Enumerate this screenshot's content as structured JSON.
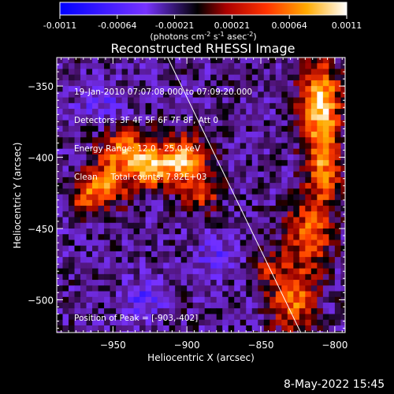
{
  "colorbar": {
    "tick_labels": [
      "-0.0011",
      "-0.00064",
      "-0.00021",
      "0.00021",
      "0.00064",
      "0.0011"
    ],
    "units_prefix": "(photons cm",
    "units_exp1": "-2",
    "units_mid": " s",
    "units_exp2": "-1",
    "units_mid2": " asec",
    "units_exp3": "-2",
    "units_suffix": ")"
  },
  "chart_data": {
    "type": "heatmap",
    "title": "Reconstructed RHESSI Image",
    "xlabel": "Heliocentric X (arcsec)",
    "ylabel": "Heliocentric Y (arcsec)",
    "xlim": [
      -988,
      -793
    ],
    "ylim": [
      -523,
      -330
    ],
    "x_ticks": [
      -950,
      -900,
      -850,
      -800
    ],
    "y_ticks": [
      -350,
      -400,
      -450,
      -500
    ],
    "x_tick_labels": [
      "−950",
      "−900",
      "−850",
      "−800"
    ],
    "y_tick_labels": [
      "−350",
      "−400",
      "−450",
      "−500"
    ],
    "color_range": [
      -0.0011,
      0.0011
    ],
    "limb_line": [
      [
        -913,
        -330
      ],
      [
        -823,
        -523
      ]
    ],
    "peak": [
      -903,
      -402
    ],
    "sources": [
      {
        "x": -940,
        "y": -396,
        "sx": 12,
        "sy": 10,
        "amp": 0.00095
      },
      {
        "x": -955,
        "y": -420,
        "sx": 10,
        "sy": 10,
        "amp": 0.0009
      },
      {
        "x": -925,
        "y": -410,
        "sx": 9,
        "sy": 9,
        "amp": 0.0008
      },
      {
        "x": -903,
        "y": -402,
        "sx": 11,
        "sy": 11,
        "amp": 0.0011
      },
      {
        "x": -890,
        "y": -425,
        "sx": 8,
        "sy": 8,
        "amp": 0.0007
      },
      {
        "x": -970,
        "y": -430,
        "sx": 6,
        "sy": 8,
        "amp": 0.0005
      },
      {
        "x": -810,
        "y": -360,
        "sx": 9,
        "sy": 18,
        "amp": 0.0011
      },
      {
        "x": -808,
        "y": -405,
        "sx": 8,
        "sy": 22,
        "amp": 0.00085
      },
      {
        "x": -818,
        "y": -455,
        "sx": 10,
        "sy": 16,
        "amp": 0.00075
      },
      {
        "x": -828,
        "y": -500,
        "sx": 10,
        "sy": 16,
        "amp": 0.0008
      },
      {
        "x": -845,
        "y": -478,
        "sx": 7,
        "sy": 10,
        "amp": 0.0004
      },
      {
        "x": -930,
        "y": -500,
        "sx": 9,
        "sy": 9,
        "amp": -0.0004
      },
      {
        "x": -880,
        "y": -470,
        "sx": 10,
        "sy": 10,
        "amp": -0.00035
      },
      {
        "x": -960,
        "y": -360,
        "sx": 12,
        "sy": 10,
        "amp": -0.0003
      }
    ]
  },
  "annotations": {
    "time_range": "19-Jan-2010 07:07:08.000 to 07:09:20.000",
    "detectors": "Detectors: 3F 4F 5F 6F 7F 8F, Att 0",
    "energy": "Energy Range: 12.0 - 25.0 keV",
    "clean": "Clean     Total counts: 7.82E+03",
    "peak_text": "Position of Peak = [-903,-402]"
  },
  "footer": {
    "date": "8-May-2022 15:45"
  }
}
